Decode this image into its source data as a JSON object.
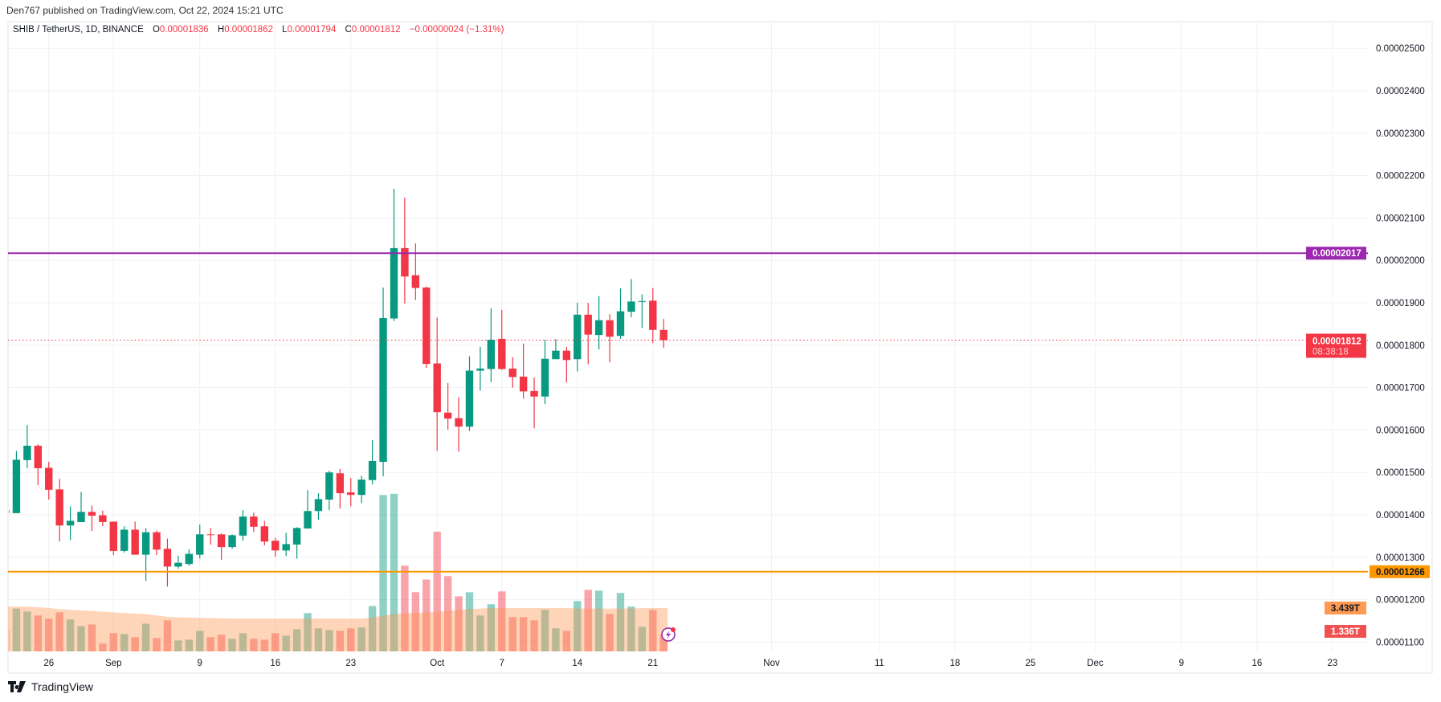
{
  "header": {
    "published": "Den767 published on TradingView.com, Oct 22, 2024 15:21 UTC"
  },
  "legend": {
    "symbol": "SHIB / TetherUS, 1D, BINANCE",
    "o_key": "O",
    "o": "0.00001836",
    "h_key": "H",
    "h": "0.00001862",
    "l_key": "L",
    "l": "0.00001794",
    "c_key": "C",
    "c": "0.00001812",
    "change": "−0.00000024 (−1.31%)"
  },
  "levels": {
    "resistance": {
      "label": "0.00002017",
      "value": 2017,
      "color": "#9c27b0"
    },
    "support": {
      "label": "0.00001266",
      "value": 1266,
      "color": "#ff9800"
    },
    "last_price": {
      "label": "0.00001812",
      "value": 1812,
      "countdown": "08:38:18",
      "color": "#f23645"
    }
  },
  "volume_tags": {
    "ma": "3.439T",
    "volume": "1.336T"
  },
  "footer": {
    "brand": "TradingView"
  },
  "colors": {
    "up": "#089981",
    "down": "#f23645",
    "grid": "#f0f1f4"
  },
  "chart_data": {
    "type": "candlestick",
    "price_unit": "1e-8 USDT",
    "ylim": [
      1050,
      2580
    ],
    "price_axis": [
      {
        "label": "0.00002500",
        "value": 2500
      },
      {
        "label": "0.00002400",
        "value": 2400
      },
      {
        "label": "0.00002300",
        "value": 2300
      },
      {
        "label": "0.00002200",
        "value": 2200
      },
      {
        "label": "0.00002100",
        "value": 2100
      },
      {
        "label": "0.00002000",
        "value": 2000
      },
      {
        "label": "0.00001900",
        "value": 1900
      },
      {
        "label": "0.00001800",
        "value": 1800
      },
      {
        "label": "0.00001700",
        "value": 1700
      },
      {
        "label": "0.00001600",
        "value": 1600
      },
      {
        "label": "0.00001500",
        "value": 1500
      },
      {
        "label": "0.00001400",
        "value": 1400
      },
      {
        "label": "0.00001300",
        "value": 1300
      },
      {
        "label": "0.00001200",
        "value": 1200
      },
      {
        "label": "0.00001100",
        "value": 1100
      }
    ],
    "time_axis": [
      {
        "label": "26",
        "date": "2024-08-26"
      },
      {
        "label": "Sep",
        "date": "2024-09-01"
      },
      {
        "label": "9",
        "date": "2024-09-09"
      },
      {
        "label": "16",
        "date": "2024-09-16"
      },
      {
        "label": "23",
        "date": "2024-09-23"
      },
      {
        "label": "Oct",
        "date": "2024-10-01"
      },
      {
        "label": "7",
        "date": "2024-10-07"
      },
      {
        "label": "14",
        "date": "2024-10-14"
      },
      {
        "label": "21",
        "date": "2024-10-21"
      },
      {
        "label": "Nov",
        "date": "2024-11-01"
      },
      {
        "label": "11",
        "date": "2024-11-11"
      },
      {
        "label": "18",
        "date": "2024-11-18"
      },
      {
        "label": "25",
        "date": "2024-11-25"
      },
      {
        "label": "Dec",
        "date": "2024-12-01"
      },
      {
        "label": "9",
        "date": "2024-12-09"
      },
      {
        "label": "16",
        "date": "2024-12-16"
      },
      {
        "label": "23",
        "date": "2024-12-23"
      }
    ],
    "start_date": "2024-08-22",
    "ohlc": [
      [
        1411,
        1412,
        1403,
        1404
      ],
      [
        1404,
        1551,
        1404,
        1530
      ],
      [
        1529,
        1612,
        1510,
        1563
      ],
      [
        1563,
        1566,
        1470,
        1510
      ],
      [
        1511,
        1525,
        1436,
        1459
      ],
      [
        1460,
        1485,
        1337,
        1375
      ],
      [
        1375,
        1420,
        1341,
        1386
      ],
      [
        1383,
        1454,
        1383,
        1407
      ],
      [
        1407,
        1422,
        1362,
        1398
      ],
      [
        1399,
        1410,
        1373,
        1383
      ],
      [
        1384,
        1384,
        1305,
        1315
      ],
      [
        1315,
        1373,
        1311,
        1365
      ],
      [
        1365,
        1384,
        1306,
        1306
      ],
      [
        1306,
        1369,
        1244,
        1359
      ],
      [
        1359,
        1363,
        1305,
        1318
      ],
      [
        1320,
        1344,
        1231,
        1278
      ],
      [
        1278,
        1304,
        1273,
        1287
      ],
      [
        1284,
        1318,
        1280,
        1308
      ],
      [
        1306,
        1377,
        1297,
        1354
      ],
      [
        1354,
        1369,
        1330,
        1353
      ],
      [
        1354,
        1356,
        1294,
        1324
      ],
      [
        1324,
        1354,
        1320,
        1352
      ],
      [
        1351,
        1411,
        1339,
        1396
      ],
      [
        1396,
        1405,
        1360,
        1372
      ],
      [
        1373,
        1386,
        1328,
        1337
      ],
      [
        1339,
        1346,
        1301,
        1316
      ],
      [
        1316,
        1358,
        1303,
        1331
      ],
      [
        1330,
        1371,
        1297,
        1369
      ],
      [
        1368,
        1458,
        1368,
        1409
      ],
      [
        1409,
        1451,
        1389,
        1437
      ],
      [
        1436,
        1504,
        1411,
        1500
      ],
      [
        1498,
        1508,
        1415,
        1451
      ],
      [
        1453,
        1487,
        1420,
        1447
      ],
      [
        1447,
        1492,
        1428,
        1483
      ],
      [
        1482,
        1576,
        1472,
        1527
      ],
      [
        1525,
        1936,
        1491,
        1864
      ],
      [
        1863,
        2169,
        1857,
        2029
      ],
      [
        2029,
        2148,
        1898,
        1962
      ],
      [
        1965,
        2040,
        1907,
        1935
      ],
      [
        1936,
        1938,
        1746,
        1756
      ],
      [
        1757,
        1865,
        1551,
        1642
      ],
      [
        1641,
        1711,
        1601,
        1627
      ],
      [
        1628,
        1677,
        1549,
        1608
      ],
      [
        1608,
        1774,
        1598,
        1740
      ],
      [
        1740,
        1796,
        1693,
        1745
      ],
      [
        1744,
        1887,
        1713,
        1813
      ],
      [
        1815,
        1883,
        1742,
        1744
      ],
      [
        1745,
        1772,
        1700,
        1725
      ],
      [
        1726,
        1804,
        1674,
        1691
      ],
      [
        1692,
        1724,
        1604,
        1679
      ],
      [
        1679,
        1813,
        1661,
        1768
      ],
      [
        1767,
        1815,
        1767,
        1787
      ],
      [
        1787,
        1796,
        1712,
        1765
      ],
      [
        1767,
        1900,
        1738,
        1872
      ],
      [
        1872,
        1900,
        1755,
        1825
      ],
      [
        1824,
        1916,
        1790,
        1859
      ],
      [
        1859,
        1873,
        1760,
        1820
      ],
      [
        1822,
        1934,
        1815,
        1880
      ],
      [
        1879,
        1956,
        1866,
        1903
      ],
      [
        1903,
        1920,
        1841,
        1904
      ],
      [
        1905,
        1935,
        1805,
        1836
      ],
      [
        1836,
        1862,
        1794,
        1812
      ]
    ],
    "volume_T": [
      1.7,
      3.4,
      3.16,
      2.85,
      2.6,
      3.1,
      2.53,
      2.0,
      2.14,
      0.62,
      1.44,
      1.38,
      1.13,
      2.2,
      1.06,
      2.46,
      0.87,
      0.93,
      1.63,
      1.13,
      1.32,
      1.0,
      1.44,
      1.0,
      0.93,
      1.44,
      1.25,
      1.76,
      3.04,
      1.83,
      1.7,
      1.63,
      1.83,
      1.9,
      3.6,
      12.4,
      12.5,
      6.8,
      4.7,
      5.7,
      9.5,
      5.97,
      4.37,
      4.69,
      2.85,
      3.74,
      4.76,
      2.72,
      2.72,
      2.46,
      3.29,
      1.83,
      1.63,
      3.99,
      4.88,
      4.82,
      2.97,
      4.63,
      3.55,
      1.95,
      3.29,
      1.336
    ],
    "volume_ma_T": [
      3.55,
      3.55,
      3.55,
      3.5,
      3.45,
      3.35,
      3.3,
      3.25,
      3.2,
      3.15,
      3.1,
      3.05,
      3.0,
      2.95,
      2.85,
      2.75,
      2.7,
      2.68,
      2.66,
      2.64,
      2.62,
      2.6,
      2.6,
      2.6,
      2.6,
      2.6,
      2.6,
      2.6,
      2.6,
      2.6,
      2.6,
      2.6,
      2.6,
      2.6,
      2.7,
      2.85,
      2.95,
      3.0,
      3.05,
      3.1,
      3.15,
      3.2,
      3.3,
      3.35,
      3.4,
      3.45,
      3.45,
      3.45,
      3.45,
      3.45,
      3.45,
      3.45,
      3.45,
      3.4,
      3.4,
      3.4,
      3.4,
      3.4,
      3.4,
      3.44,
      3.44,
      3.439
    ]
  }
}
